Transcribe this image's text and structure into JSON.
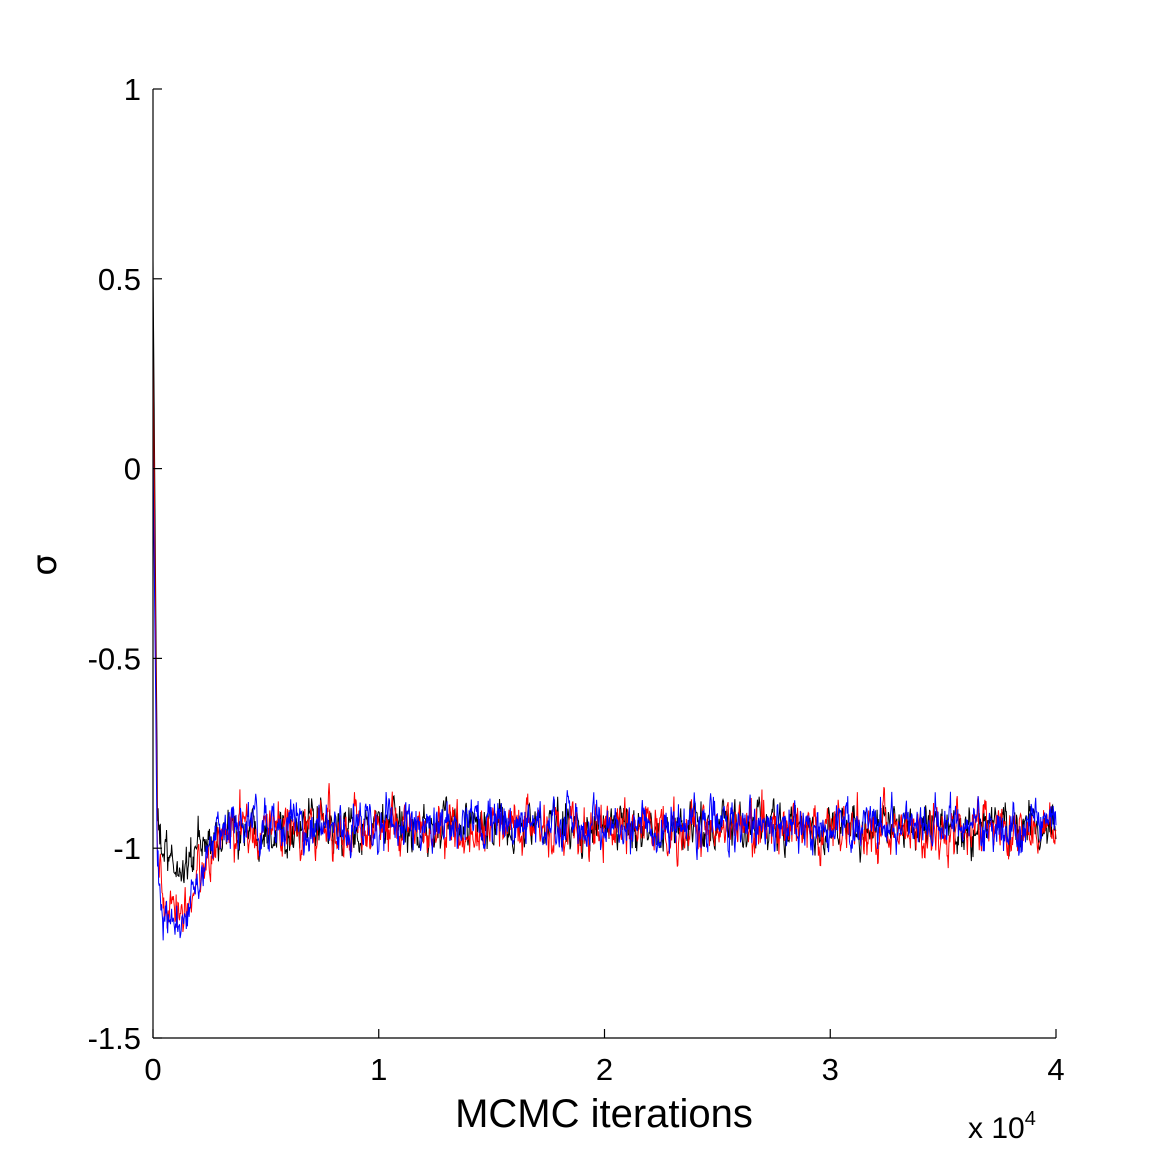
{
  "chart_data": {
    "type": "line",
    "title": "",
    "xlabel": "MCMC iterations",
    "ylabel": "σ",
    "x_multiplier": {
      "base": "x 10",
      "exponent": "4"
    },
    "xlim": [
      0,
      40000
    ],
    "ylim": [
      -1.5,
      1
    ],
    "xticks": [
      0,
      10000,
      20000,
      30000,
      40000
    ],
    "xtick_labels": [
      "0",
      "1",
      "2",
      "3",
      "4"
    ],
    "yticks": [
      1,
      0.5,
      0,
      -0.5,
      -1,
      -1.5
    ],
    "ytick_labels": [
      "1",
      "0.5",
      "0",
      "-0.5",
      "-1",
      "-1.5"
    ],
    "grid": false,
    "legend": "none",
    "series": [
      {
        "color": "#000000",
        "x": [
          0,
          200,
          400,
          800,
          1200,
          1600,
          2000,
          2400,
          2800,
          3200,
          3600,
          4000,
          5000,
          6000,
          8000,
          10000,
          12000,
          14000,
          16000,
          18000,
          20000,
          22000,
          24000,
          26000,
          28000,
          30000,
          32000,
          34000,
          36000,
          38000,
          40000
        ],
        "values": [
          0.55,
          -0.95,
          -1.0,
          -1.05,
          -1.06,
          -1.03,
          -1.0,
          -0.99,
          -0.97,
          -0.96,
          -0.95,
          -0.95,
          -0.94,
          -0.94,
          -0.95,
          -0.94,
          -0.95,
          -0.94,
          -0.95,
          -0.94,
          -0.95,
          -0.94,
          -0.95,
          -0.94,
          -0.94,
          -0.95,
          -0.94,
          -0.94,
          -0.95,
          -0.94,
          -0.95
        ],
        "noise": 0.045
      },
      {
        "color": "#ff0000",
        "x": [
          0,
          200,
          400,
          800,
          1200,
          1600,
          2000,
          2400,
          2800,
          3200,
          3600,
          4000,
          5000,
          6000,
          8000,
          10000,
          12000,
          14000,
          16000,
          18000,
          20000,
          22000,
          24000,
          26000,
          28000,
          30000,
          32000,
          34000,
          36000,
          38000,
          40000
        ],
        "values": [
          0.3,
          -1.0,
          -1.15,
          -1.18,
          -1.17,
          -1.13,
          -1.08,
          -1.03,
          -0.99,
          -0.97,
          -0.96,
          -0.95,
          -0.95,
          -0.94,
          -0.95,
          -0.94,
          -0.95,
          -0.96,
          -0.94,
          -0.95,
          -0.94,
          -0.95,
          -0.96,
          -0.95,
          -0.94,
          -0.95,
          -0.95,
          -0.96,
          -0.95,
          -0.95,
          -0.95
        ],
        "noise": 0.05
      },
      {
        "color": "#0000ff",
        "x": [
          0,
          200,
          400,
          800,
          1200,
          1600,
          2000,
          2400,
          2800,
          3200,
          3600,
          4000,
          5000,
          6000,
          8000,
          10000,
          12000,
          14000,
          16000,
          18000,
          20000,
          22000,
          24000,
          26000,
          28000,
          30000,
          32000,
          34000,
          36000,
          38000,
          40000
        ],
        "values": [
          0.05,
          -1.05,
          -1.2,
          -1.22,
          -1.2,
          -1.15,
          -1.08,
          -1.0,
          -0.96,
          -0.95,
          -0.95,
          -0.94,
          -0.94,
          -0.94,
          -0.95,
          -0.94,
          -0.94,
          -0.95,
          -0.94,
          -0.94,
          -0.94,
          -0.95,
          -0.94,
          -0.94,
          -0.94,
          -0.95,
          -0.94,
          -0.94,
          -0.94,
          -0.94,
          -0.94
        ],
        "noise": 0.045
      }
    ]
  }
}
